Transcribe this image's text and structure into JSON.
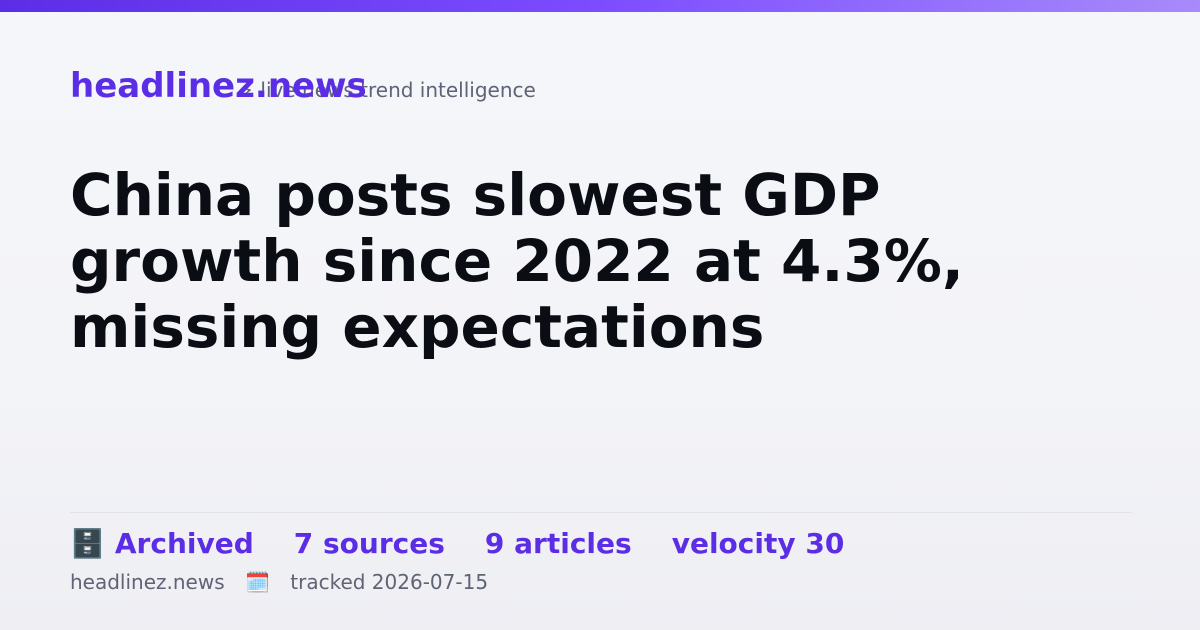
{
  "brand": {
    "name": "headlinez.news",
    "tagline_icon": "⚡",
    "tagline": "live news trend intelligence",
    "accent_color": "#5b2ee6"
  },
  "headline": "China posts slowest GDP growth since 2022 at 4.3%, missing expectations",
  "stats": {
    "status_icon": "🗄️",
    "status": "Archived",
    "sources": "7 sources",
    "articles": "9 articles",
    "velocity": "velocity 30"
  },
  "footer": {
    "site": "headlinez.news",
    "icon": "🗓️",
    "tracked": "tracked 2026-07-15"
  }
}
